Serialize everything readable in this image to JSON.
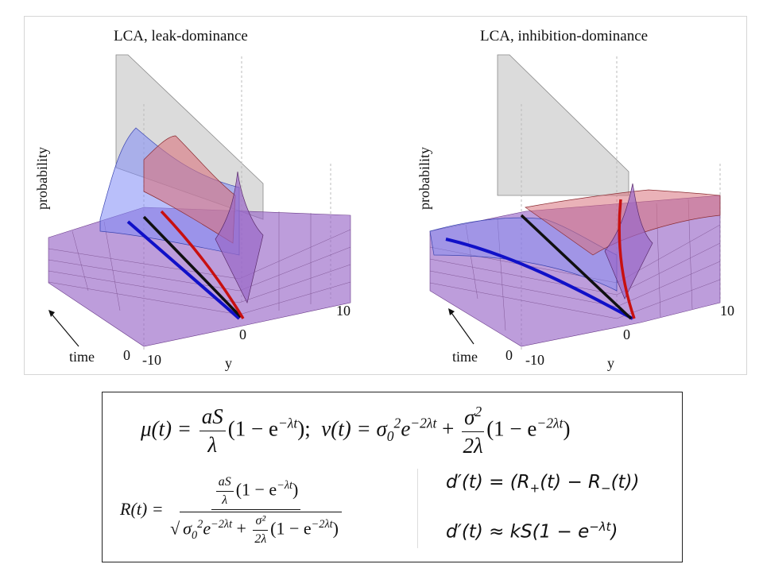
{
  "figure": {
    "panels": [
      {
        "title": "LCA, leak-dominance",
        "axes": {
          "probability": "probability",
          "time": "time",
          "y": "y",
          "tick_time_zero": "0",
          "tick_y_neg": "-10",
          "tick_y_zero": "0",
          "tick_y_pos": "10"
        }
      },
      {
        "title": "LCA, inhibition-dominance",
        "axes": {
          "probability": "probability",
          "time": "time",
          "y": "y",
          "tick_time_zero": "0",
          "tick_y_neg": "-10",
          "tick_y_zero": "0",
          "tick_y_pos": "10"
        }
      }
    ],
    "colors": {
      "surface_red": "#d9737d",
      "surface_blue": "#7f8bf5",
      "surface_purple": "#9a68c8",
      "wall_gray": "#cfcfcf",
      "line_blue": "#1010c8",
      "line_black": "#101010",
      "line_red": "#c81010"
    }
  },
  "equations": {
    "mu_lhs": "μ(t) = ",
    "mu_num": "aS",
    "mu_den": "λ",
    "mu_tail": "(1 − e",
    "mu_exp": "−λt",
    "mu_close": ");",
    "nu_lhs": "ν(t) = σ",
    "nu_sub": "0",
    "nu_sup": "2",
    "nu_e": "e",
    "nu_exp": "−2λt",
    "nu_plus": " + ",
    "nu_num": "σ",
    "nu_num_sup": "2",
    "nu_den": "2λ",
    "nu_tail": "(1 − e",
    "nu_tail_exp": "−2λt",
    "nu_close": ")",
    "R_lhs": "R(t) = ",
    "R_num_frac_num": "aS",
    "R_num_frac_den": "λ",
    "R_num_tail": "(1 − e",
    "R_num_exp": "−λt",
    "R_num_close": ")",
    "R_den_sigma": "σ",
    "R_den_sub": "0",
    "R_den_sup": "2",
    "R_den_e": "e",
    "R_den_exp": "−2λt",
    "R_den_plus": " + ",
    "R_den_frac_num": "σ²",
    "R_den_frac_den": "2λ",
    "R_den_tail": "(1 − e",
    "R_den_tail_exp": "−2λt",
    "R_den_close": ")",
    "dprime_def_lhs": "d′(t) = ",
    "dprime_def_rhs_open": "(R",
    "dprime_plus_sub": "+",
    "dprime_mid": "(t) − R",
    "dprime_minus_sub": "−",
    "dprime_def_close": "(t))",
    "dprime_approx_lhs": "d′(t) ≈ kS(1 − e",
    "dprime_approx_exp": "−λt",
    "dprime_approx_close": ")"
  }
}
